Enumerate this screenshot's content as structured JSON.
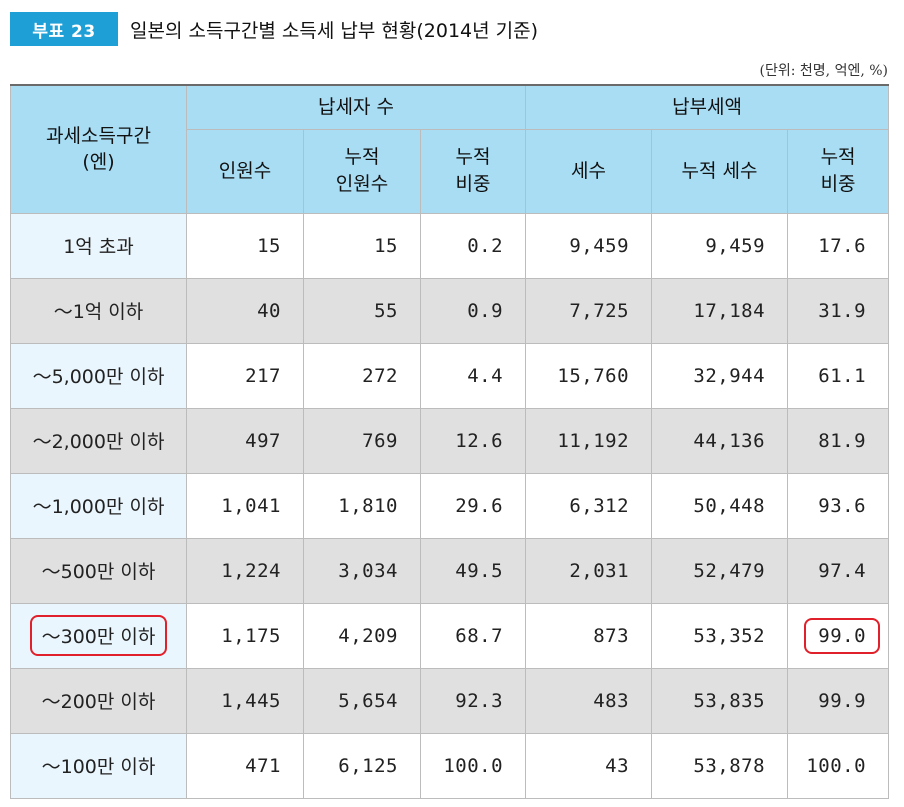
{
  "header": {
    "badge": "부표 23",
    "title": "일본의 소득구간별 소득세 납부 현황(2014년 기준)",
    "unit": "(단위: 천명, 억엔, %)"
  },
  "table": {
    "row_header": [
      "과세소득구간",
      "(엔)"
    ],
    "group1": "납세자 수",
    "group2": "납부세액",
    "columns": [
      [
        "인원수"
      ],
      [
        "누적",
        "인원수"
      ],
      [
        "누적",
        "비중"
      ],
      [
        "세수"
      ],
      [
        "누적 세수"
      ],
      [
        "누적",
        "비중"
      ]
    ],
    "rows": [
      {
        "label": "1억 초과",
        "cells": [
          "15",
          "15",
          "0.2",
          "9,459",
          "9,459",
          "17.6"
        ]
      },
      {
        "label": "～1억 이하",
        "cells": [
          "40",
          "55",
          "0.9",
          "7,725",
          "17,184",
          "31.9"
        ]
      },
      {
        "label": "～5,000만 이하",
        "cells": [
          "217",
          "272",
          "4.4",
          "15,760",
          "32,944",
          "61.1"
        ]
      },
      {
        "label": "～2,000만 이하",
        "cells": [
          "497",
          "769",
          "12.6",
          "11,192",
          "44,136",
          "81.9"
        ]
      },
      {
        "label": "～1,000만 이하",
        "cells": [
          "1,041",
          "1,810",
          "29.6",
          "6,312",
          "50,448",
          "93.6"
        ]
      },
      {
        "label": "～500만 이하",
        "cells": [
          "1,224",
          "3,034",
          "49.5",
          "2,031",
          "52,479",
          "97.4"
        ]
      },
      {
        "label": "～300만 이하",
        "cells": [
          "1,175",
          "4,209",
          "68.7",
          "873",
          "53,352",
          "99.0"
        ]
      },
      {
        "label": "～200만 이하",
        "cells": [
          "1,445",
          "5,654",
          "92.3",
          "483",
          "53,835",
          "99.9"
        ]
      },
      {
        "label": "～100만 이하",
        "cells": [
          "471",
          "6,125",
          "100.0",
          "43",
          "53,878",
          "100.0"
        ]
      }
    ]
  },
  "colors": {
    "badge": "#1e9fd6",
    "header_bg": "#a8ddf4",
    "label_bg": "#eaf6fd",
    "shade_bg": "#e0e0e0",
    "highlight": "#e0202a"
  }
}
